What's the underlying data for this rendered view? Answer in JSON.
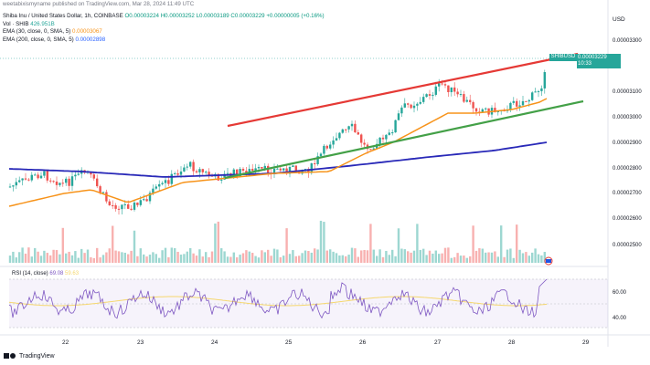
{
  "header": {
    "published": "weetabixismyname published on TradingView.com, Mar 28, 2024 11:49 UTC",
    "symbol": "Shiba Inu / United States Dollar, 1h, COINBASE",
    "ohlc": "O0.00003224  H0.00003252  L0.00003189  C0.00003229",
    "change": "+0.00000005 (+0.16%)",
    "vol_label": "Vol · SHIB",
    "vol_value": "426.951B",
    "ema1_label": "EMA (30, close, 0, SMA, 5)",
    "ema1_value": "0.00003067",
    "ema2_label": "EMA (200, close, 0, SMA, 5)",
    "ema2_value": "0.00002898"
  },
  "price_badge": {
    "symbol": "SHIBUSD",
    "price": "0.00003229",
    "countdown": "10:33"
  },
  "axis": {
    "currency": "USD",
    "price_ticks": [
      "0.00003300",
      "0.00003100",
      "0.00003000",
      "0.00002900",
      "0.00002800",
      "0.00002700",
      "0.00002600",
      "0.00002500"
    ],
    "rsi_ticks": [
      "60.00",
      "40.00"
    ],
    "x_ticks": [
      "22",
      "23",
      "24",
      "25",
      "26",
      "27",
      "28",
      "29"
    ]
  },
  "rsi": {
    "label": "RSI (14, close)",
    "value": "69.08",
    "ma_value": "59.63"
  },
  "colors": {
    "up": "#26a69a",
    "down": "#ef5350",
    "ema30": "#f7931a",
    "ema200": "#2929b8",
    "resistance": "#e53935",
    "support": "#43a047",
    "rsi": "#7e57c2",
    "rsi_ma": "#f5d76e"
  },
  "brand": {
    "name": "TradingView"
  }
}
